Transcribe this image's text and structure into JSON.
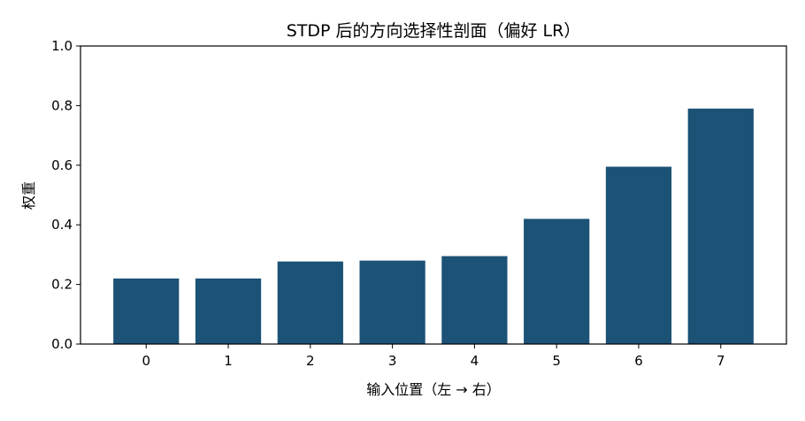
{
  "chart_data": {
    "type": "bar",
    "title": "STDP 后的方向选择性剖面（偏好 LR）",
    "xlabel": "输入位置（左 → 右）",
    "ylabel": "权重",
    "categories": [
      "0",
      "1",
      "2",
      "3",
      "4",
      "5",
      "6",
      "7"
    ],
    "values": [
      0.22,
      0.22,
      0.277,
      0.28,
      0.295,
      0.42,
      0.595,
      0.79
    ],
    "ylim": [
      0,
      1.0
    ],
    "yticks": [
      "0.0",
      "0.2",
      "0.4",
      "0.6",
      "0.8",
      "1.0"
    ],
    "grid": false,
    "bar_color": "#1b5276"
  }
}
